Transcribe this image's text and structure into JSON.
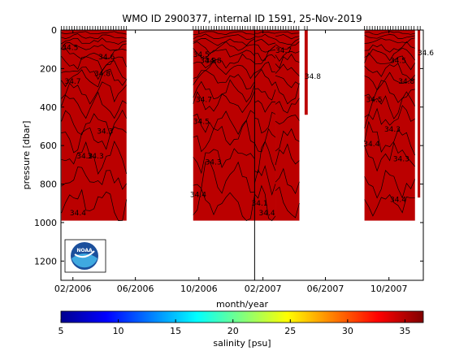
{
  "chart_data": {
    "type": "heatmap",
    "title": "WMO ID 2900377, internal ID 1591, 25-Nov-2019",
    "xlabel": "month/year",
    "ylabel": "pressure [dbar]",
    "x_ticks": [
      "02/2006",
      "06/2006",
      "10/2006",
      "02/2007",
      "06/2007",
      "10/2007"
    ],
    "x_range": [
      "2006-01-09",
      "2007-12-06"
    ],
    "y_ticks": [
      0,
      200,
      400,
      600,
      800,
      1000,
      1200
    ],
    "ylim": [
      1300,
      0
    ],
    "y_reversed": true,
    "fill_color": "#bb0000",
    "data_blocks": [
      {
        "start": "2006-01-10",
        "end": "2006-05-15",
        "max_pressure": 990
      },
      {
        "start": "2006-09-20",
        "end": "2007-01-16",
        "max_pressure": 990
      },
      {
        "start": "2007-01-16",
        "end": "2007-02-25",
        "max_pressure": 990
      },
      {
        "start": "2007-02-25",
        "end": "2007-04-12",
        "max_pressure": 990
      },
      {
        "start": "2007-04-22",
        "end": "2007-04-28",
        "max_pressure": 440
      },
      {
        "start": "2007-08-15",
        "end": "2007-11-20",
        "max_pressure": 990
      },
      {
        "start": "2007-11-25",
        "end": "2007-11-30",
        "max_pressure": 870
      }
    ],
    "contour_labels": [
      {
        "text": "34.5",
        "date": "2006-01-11",
        "pressure": 90
      },
      {
        "text": "34.6",
        "date": "2006-03-22",
        "pressure": 140
      },
      {
        "text": "34.8",
        "date": "2006-03-14",
        "pressure": 225
      },
      {
        "text": "34.7",
        "date": "2006-01-16",
        "pressure": 265
      },
      {
        "text": "34.3",
        "date": "2006-03-19",
        "pressure": 525
      },
      {
        "text": "34.2",
        "date": "2006-02-08",
        "pressure": 655
      },
      {
        "text": "34.3",
        "date": "2006-03-01",
        "pressure": 655
      },
      {
        "text": "34.4",
        "date": "2006-01-26",
        "pressure": 950
      },
      {
        "text": "34.5",
        "date": "2006-09-20",
        "pressure": 127
      },
      {
        "text": "34.9",
        "date": "2006-10-03",
        "pressure": 158
      },
      {
        "text": "34.8",
        "date": "2006-10-13",
        "pressure": 158
      },
      {
        "text": "34.7",
        "date": "2006-09-25",
        "pressure": 360
      },
      {
        "text": "34.5",
        "date": "2006-09-20",
        "pressure": 475
      },
      {
        "text": "34.3",
        "date": "2006-10-13",
        "pressure": 685
      },
      {
        "text": "34.4",
        "date": "2006-09-14",
        "pressure": 855
      },
      {
        "text": "34.1",
        "date": "2007-01-10",
        "pressure": 900
      },
      {
        "text": "34.4",
        "date": "2007-01-24",
        "pressure": 950
      },
      {
        "text": "34.7",
        "date": "2007-02-25",
        "pressure": 105
      },
      {
        "text": "34.8",
        "date": "2007-04-22",
        "pressure": 240
      },
      {
        "text": "34.5",
        "date": "2007-10-03",
        "pressure": 158
      },
      {
        "text": "34.6",
        "date": "2007-11-25",
        "pressure": 118
      },
      {
        "text": "34.8",
        "date": "2007-10-19",
        "pressure": 265
      },
      {
        "text": "34.5",
        "date": "2007-08-18",
        "pressure": 360
      },
      {
        "text": "34.3",
        "date": "2007-09-22",
        "pressure": 515
      },
      {
        "text": "34.4",
        "date": "2007-08-13",
        "pressure": 590
      },
      {
        "text": "34.3",
        "date": "2007-10-09",
        "pressure": 670
      },
      {
        "text": "34.4",
        "date": "2007-10-03",
        "pressure": 880
      }
    ],
    "vertical_line_date": "2007-01-16",
    "colorbar": {
      "label": "salinity [psu]",
      "range": [
        5,
        36.6
      ],
      "ticks": [
        5,
        10,
        15,
        20,
        25,
        30,
        35
      ],
      "colormap": "jet"
    }
  },
  "logo_text": "NOAA"
}
